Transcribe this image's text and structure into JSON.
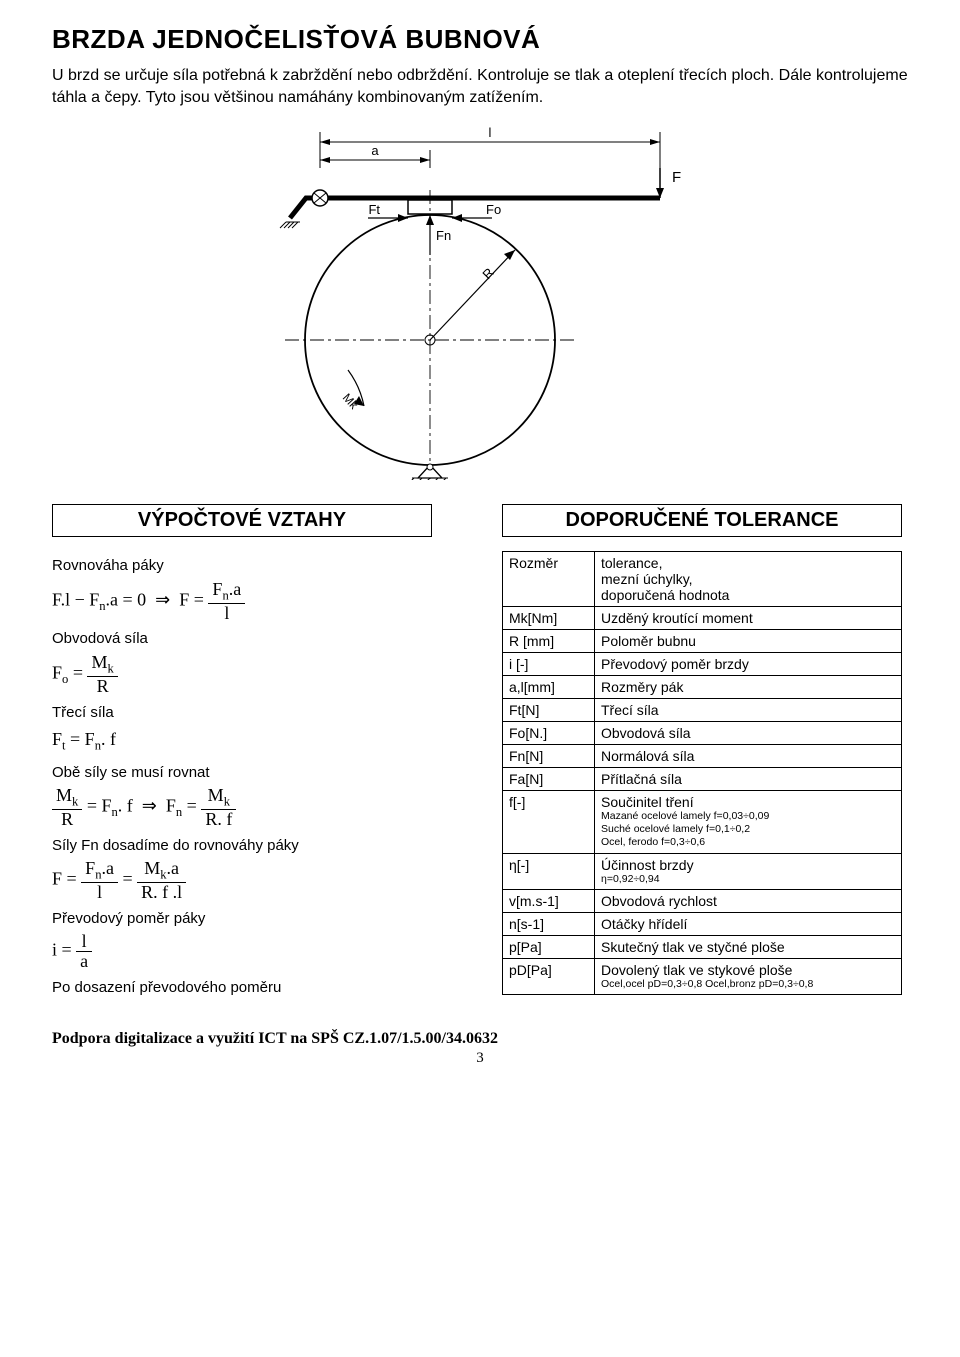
{
  "title": "BRZDA JEDNOČELISŤOVÁ BUBNOVÁ",
  "intro": "U brzd se určuje síla potřebná k zabrždění nebo odbrždění. Kontroluje se tlak a oteplení třecích ploch. Dále kontrolujeme táhla a čepy. Tyto jsou většinou namáhány kombinovaným zatížením.",
  "diagram": {
    "labels": {
      "a": "a",
      "l": "l",
      "F": "F",
      "Ft": "Ft",
      "Fo": "Fo",
      "Fn": "Fn",
      "R": "R",
      "Mk": "Mk"
    }
  },
  "headers": {
    "left": "VÝPOČTOVÉ VZTAHY",
    "right": "DOPORUČENÉ TOLERANCE"
  },
  "calc": {
    "l1": "Rovnováha páky",
    "l2": "Obvodová síla",
    "l3": "Třecí síla",
    "l4": "Obě síly se musí rovnat",
    "l5": "Síly Fn dosadíme do rovnováhy páky",
    "l6": "Převodový poměr páky",
    "l7": "Po dosazení převodového poměru"
  },
  "tolerance_header": {
    "sym": "Rozměr",
    "desc": "tolerance,\nmezní úchylky,\ndoporučená hodnota"
  },
  "tolerance_rows": [
    {
      "sym": "Mk[Nm]",
      "desc": "Uzděný kroutící moment"
    },
    {
      "sym": "R [mm]",
      "desc": "Poloměr bubnu"
    },
    {
      "sym": "i [-]",
      "desc": "Převodový poměr brzdy"
    },
    {
      "sym": "a,l[mm]",
      "desc": "Rozměry pák"
    },
    {
      "sym": "Ft[N]",
      "desc": "Třecí síla"
    },
    {
      "sym": "Fo[N.]",
      "desc": "Obvodová síla"
    },
    {
      "sym": "Fn[N]",
      "desc": "Normálová síla"
    },
    {
      "sym": "Fa[N]",
      "desc": "Přítlačná síla"
    },
    {
      "sym": "f[-]",
      "desc": "Součinitel tření",
      "note": "Mazané ocelové lamely f=0,03÷0,09\nSuché ocelové lamely f=0,1÷0,2\nOcel, ferodo f=0,3÷0,6"
    },
    {
      "sym": "η[-]",
      "desc": "Účinnost brzdy",
      "note": "η=0,92÷0,94"
    },
    {
      "sym": "v[m.s-1]",
      "desc": "Obvodová rychlost"
    },
    {
      "sym": "n[s-1]",
      "desc": "Otáčky hřídelí"
    },
    {
      "sym": "p[Pa]",
      "desc": "Skutečný tlak ve styčné ploše"
    },
    {
      "sym": "pD[Pa]",
      "desc": "Dovolený tlak ve stykové ploše",
      "note": "Ocel,ocel pD=0,3÷0,8 Ocel,bronz pD=0,3÷0,8"
    }
  ],
  "footer": "Podpora digitalizace a využití ICT na SPŠ  CZ.1.07/1.5.00/34.0632",
  "page_num": "3"
}
